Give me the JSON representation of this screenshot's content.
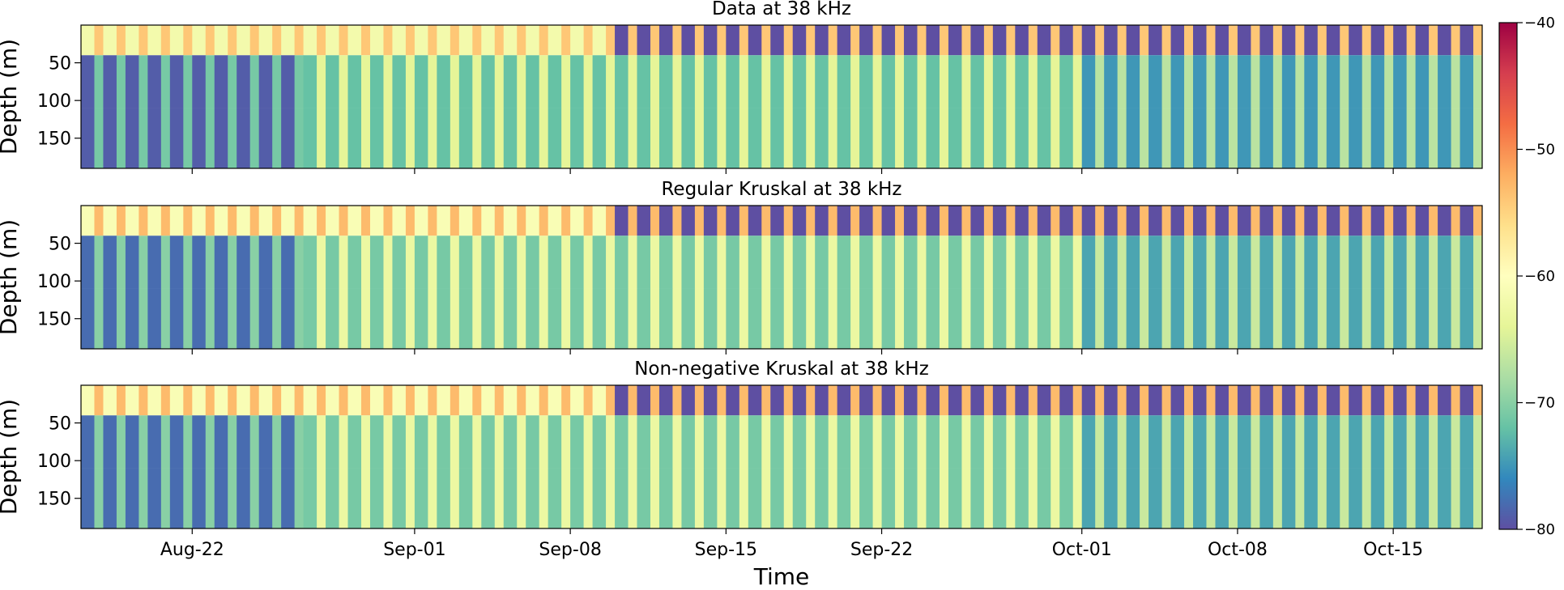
{
  "chart_data": {
    "type": "heatmap",
    "xlabel": "Time",
    "x_ticks": [
      "Aug-22",
      "Sep-01",
      "Sep-08",
      "Sep-15",
      "Sep-22",
      "Oct-01",
      "Oct-08",
      "Oct-15"
    ],
    "x_range": [
      "2015-08-17",
      "2015-10-19"
    ],
    "y_ticks": [
      "50",
      "100",
      "150"
    ],
    "y_range": [
      0,
      190
    ],
    "y_inverted": true,
    "colormap": "Spectral_r",
    "color_scale": {
      "min": -80,
      "max": -40,
      "ticks": [
        "−80",
        "−70",
        "−60",
        "−50",
        "−40"
      ]
    },
    "panels": [
      {
        "title": "Data at 38 kHz",
        "ylabel": "Depth (m)",
        "summary": {
          "surface_0_40m": -62,
          "deep_40_190m_aug_early": -79,
          "deep_40_190m_late_aug_to_sep": -72,
          "deep_40_190m_oct": -75,
          "diel_dark_band_min": -80
        }
      },
      {
        "title": "Regular Kruskal at 38 kHz",
        "ylabel": "Depth (m)",
        "summary": {
          "surface_0_40m": -61,
          "deep_40_190m_aug_early": -78,
          "deep_40_190m_late_aug_to_sep": -71,
          "deep_40_190m_oct": -74,
          "diel_dark_band_min": -80
        }
      },
      {
        "title": "Non-negative Kruskal at 38 kHz",
        "ylabel": "Depth (m)",
        "summary": {
          "surface_0_40m": -61,
          "deep_40_190m_aug_early": -78,
          "deep_40_190m_late_aug_to_sep": -71,
          "deep_40_190m_oct": -74,
          "diel_dark_band_min": -80
        }
      }
    ]
  }
}
